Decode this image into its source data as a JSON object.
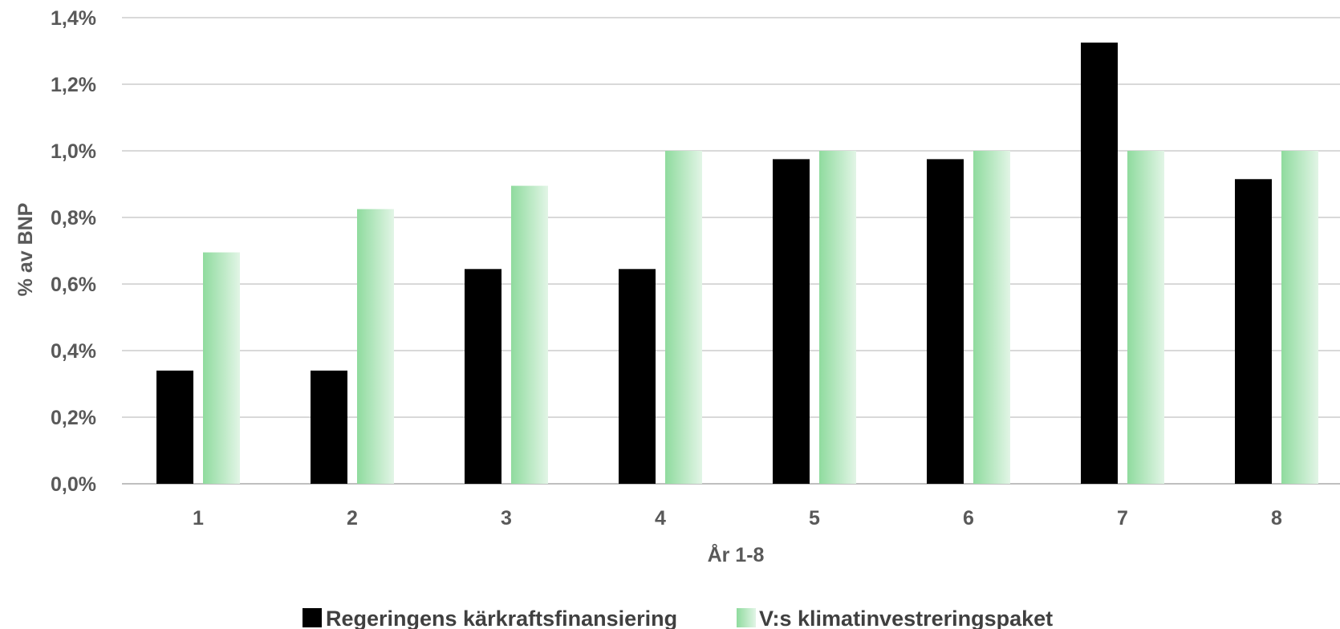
{
  "chart_data": {
    "type": "bar",
    "xlabel": "År 1-8",
    "ylabel": "% av BNP",
    "categories": [
      "1",
      "2",
      "3",
      "4",
      "5",
      "6",
      "7",
      "8"
    ],
    "ylim": [
      0,
      1.4
    ],
    "yticks": [
      0,
      0.2,
      0.4,
      0.6,
      0.8,
      1.0,
      1.2,
      1.4
    ],
    "ytick_labels": [
      "0,0%",
      "0,2%",
      "0,4%",
      "0,6%",
      "0,8%",
      "1,0%",
      "1,2%",
      "1,4%"
    ],
    "grid": true,
    "legend_position": "bottom",
    "series": [
      {
        "name": "Regeringens kärkraftsfinansiering",
        "color": "#000000",
        "values": [
          0.34,
          0.34,
          0.645,
          0.645,
          0.975,
          0.975,
          1.325,
          0.915
        ]
      },
      {
        "name": "V:s klimatinvestreringspaket",
        "color": "#8fdb9e",
        "color_light": "#e2f5e6",
        "values": [
          0.695,
          0.825,
          0.895,
          1.0,
          1.0,
          1.0,
          1.0,
          1.0
        ]
      }
    ]
  }
}
